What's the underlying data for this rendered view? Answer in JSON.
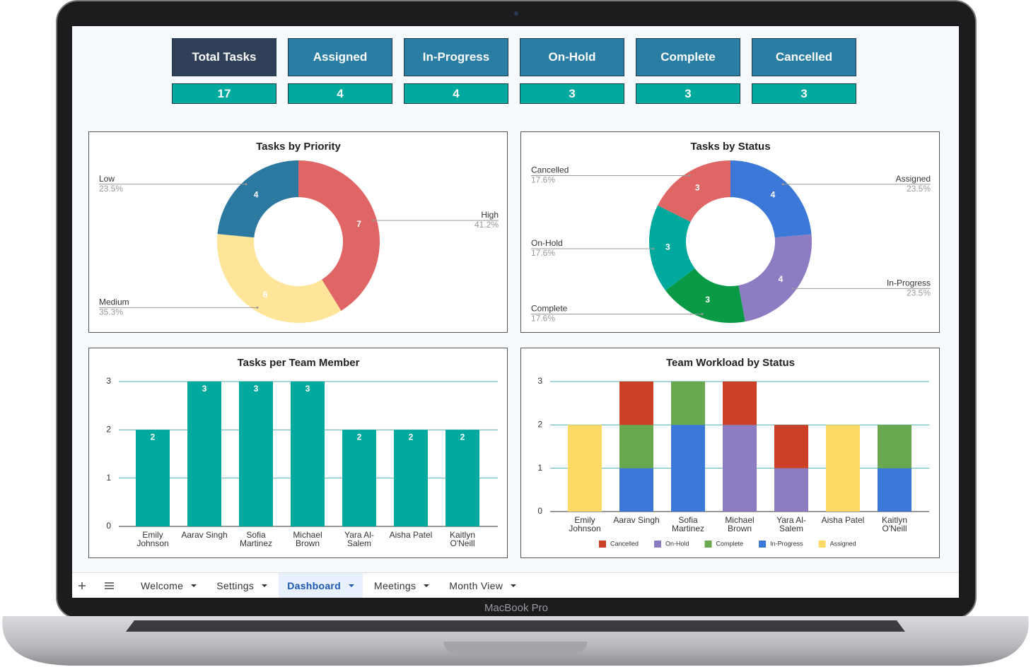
{
  "device_label": "MacBook Pro",
  "summary_cards": [
    {
      "label": "Total Tasks",
      "value": 17
    },
    {
      "label": "Assigned",
      "value": 4
    },
    {
      "label": "In-Progress",
      "value": 4
    },
    {
      "label": "On-Hold",
      "value": 3
    },
    {
      "label": "Complete",
      "value": 3
    },
    {
      "label": "Cancelled",
      "value": 3
    }
  ],
  "chart_data": [
    {
      "type": "donut",
      "title": "Tasks by Priority",
      "categories": [
        "High",
        "Medium",
        "Low"
      ],
      "values": [
        7,
        6,
        4
      ],
      "percentages": [
        {
          "value": 41.2,
          "label": "41.2%"
        },
        {
          "value": 35.3,
          "label": "35.3%"
        },
        {
          "value": 23.5,
          "label": "23.5%"
        }
      ],
      "colors": [
        "#e06666",
        "#ffe599",
        "#2b78a0"
      ]
    },
    {
      "type": "donut",
      "title": "Tasks by Status",
      "categories": [
        "Assigned",
        "In-Progress",
        "Complete",
        "On-Hold",
        "Cancelled"
      ],
      "values": [
        4,
        4,
        3,
        3,
        3
      ],
      "percentages": [
        {
          "value": 23.5,
          "label": "23.5%"
        },
        {
          "value": 23.5,
          "label": "23.5%"
        },
        {
          "value": 17.6,
          "label": "17.6%"
        },
        {
          "value": 17.6,
          "label": "17.6%"
        },
        {
          "value": 17.6,
          "label": "17.6%"
        }
      ],
      "colors": [
        "#3c78d8",
        "#8e7cc3",
        "#0a9a45",
        "#00a99d",
        "#e06666"
      ]
    },
    {
      "type": "bar",
      "title": "Tasks per Team Member",
      "categories": [
        "Emily Johnson",
        "Aarav Singh",
        "Sofia Martinez",
        "Michael Brown",
        "Yara Al-Salem",
        "Aisha Patel",
        "Kaitlyn O'Neill"
      ],
      "values": [
        2,
        3,
        3,
        3,
        2,
        2,
        2
      ],
      "color": "#00a99d",
      "ylim": [
        0,
        3
      ],
      "yticks": [
        0,
        1,
        2,
        3
      ],
      "grid": true
    },
    {
      "type": "stacked_bar",
      "title": "Team Workload by Status",
      "categories": [
        "Emily Johnson",
        "Aarav Singh",
        "Sofia Martinez",
        "Michael Brown",
        "Yara Al-Salem",
        "Aisha Patel",
        "Kaitlyn O'Neill"
      ],
      "series": [
        {
          "name": "Cancelled",
          "color": "#cc4125",
          "values": [
            0,
            1,
            0,
            1,
            1,
            0,
            0
          ]
        },
        {
          "name": "On-Hold",
          "color": "#8e7cc3",
          "values": [
            0,
            0,
            0,
            2,
            1,
            0,
            0
          ]
        },
        {
          "name": "Complete",
          "color": "#6aa84f",
          "values": [
            0,
            1,
            1,
            0,
            0,
            0,
            1
          ]
        },
        {
          "name": "In-Progress",
          "color": "#3c78d8",
          "values": [
            0,
            1,
            2,
            0,
            0,
            0,
            1
          ]
        },
        {
          "name": "Assigned",
          "color": "#ffd966",
          "values": [
            2,
            0,
            0,
            0,
            0,
            2,
            0
          ]
        }
      ],
      "ylim": [
        0,
        3
      ],
      "yticks": [
        0,
        1,
        2,
        3
      ],
      "grid": true,
      "legend": "bottom"
    }
  ],
  "tabs": [
    {
      "label": "Welcome"
    },
    {
      "label": "Settings"
    },
    {
      "label": "Dashboard",
      "active": true
    },
    {
      "label": "Meetings"
    },
    {
      "label": "Month View"
    }
  ]
}
